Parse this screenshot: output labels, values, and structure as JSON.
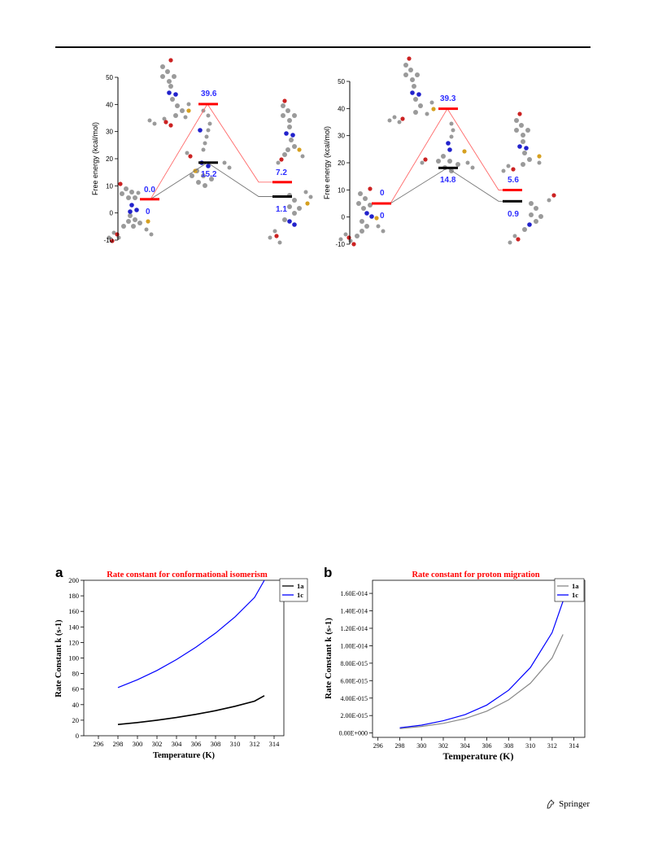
{
  "publisher": "Springer",
  "energy_diagrams": [
    {
      "ylabel": "Free energy (kcal/mol)",
      "ticks": [
        -10,
        0,
        10,
        20,
        30,
        40,
        50
      ],
      "labels": {
        "r_red": "0.0",
        "r_black": "0",
        "ts_red": "39.6",
        "ts_black": "15.2",
        "p_red": "7.2",
        "p_black": "1.1"
      },
      "values": {
        "reactant": 0.0,
        "ts_red": 39.6,
        "ts_black": 15.2,
        "p_red": 7.2,
        "p_black": 1.1
      }
    },
    {
      "ylabel": "Free energy (kcal/mol)",
      "ticks": [
        -10,
        0,
        10,
        20,
        30,
        40,
        50
      ],
      "labels": {
        "r_red": "0",
        "r_black": "0",
        "ts_red": "39.3",
        "ts_black": "14.8",
        "p_red": "5.6",
        "p_black": "0.9"
      },
      "values": {
        "reactant": 0.0,
        "ts_red": 39.3,
        "ts_black": 14.8,
        "p_red": 5.6,
        "p_black": 0.9
      }
    }
  ],
  "chart_data": [
    {
      "type": "line",
      "panel": "a",
      "title": "Rate constant for conformational isomerism",
      "xlabel": "Temperature (K)",
      "ylabel": "Rate Constant k (s-1)",
      "xlim": [
        294.5,
        315
      ],
      "ylim": [
        0,
        200
      ],
      "xticks": [
        296,
        298,
        300,
        302,
        304,
        306,
        308,
        310,
        312,
        314
      ],
      "yticks": [
        0,
        20,
        40,
        60,
        80,
        100,
        120,
        140,
        160,
        180,
        200
      ],
      "ytick_labels": [
        "0",
        "20",
        "40",
        "60",
        "80",
        "100",
        "120",
        "140",
        "160",
        "180",
        "200"
      ],
      "legend": "top-right",
      "series": [
        {
          "name": "1a",
          "color": "#000000",
          "x": [
            298,
            300,
            302,
            304,
            306,
            308,
            310,
            312,
            313
          ],
          "y": [
            14.5,
            17.0,
            20.0,
            23.5,
            27.5,
            32.3,
            37.9,
            44.5,
            51.5
          ]
        },
        {
          "name": "1c",
          "color": "#0000ff",
          "x": [
            298,
            300,
            302,
            304,
            306,
            308,
            310,
            312,
            313
          ],
          "y": [
            62,
            72,
            84,
            98,
            114,
            132,
            153,
            178,
            200
          ]
        }
      ]
    },
    {
      "type": "line",
      "panel": "b",
      "title": "Rate constant for proton migration",
      "xlabel": "Temperature (K)",
      "ylabel": "Rate Constant k (s-1)",
      "xlim": [
        295.5,
        315
      ],
      "ylim": [
        -5e-16,
        1.75e-14
      ],
      "xticks": [
        296,
        298,
        300,
        302,
        304,
        306,
        308,
        310,
        312,
        314
      ],
      "yticks": [
        0,
        2e-15,
        4e-15,
        6e-15,
        8e-15,
        1e-14,
        1.2e-14,
        1.4e-14,
        1.6e-14
      ],
      "ytick_labels": [
        "0.00E+000",
        "2.00E-015",
        "4.00E-015",
        "6.00E-015",
        "8.00E-015",
        "1.00E-014",
        "1.20E-014",
        "1.40E-014",
        "1.60E-014"
      ],
      "legend": "top-right",
      "series": [
        {
          "name": "1a",
          "color": "#888888",
          "x": [
            298,
            300,
            302,
            304,
            306,
            308,
            310,
            312,
            313
          ],
          "y": [
            5e-16,
            7.5e-16,
            1.1e-15,
            1.65e-15,
            2.5e-15,
            3.8e-15,
            5.7e-15,
            8.6e-15,
            1.13e-14
          ]
        },
        {
          "name": "1c",
          "color": "#0000ff",
          "x": [
            298,
            300,
            302,
            304,
            306,
            308,
            310,
            312,
            313
          ],
          "y": [
            6e-16,
            9e-16,
            1.4e-15,
            2.1e-15,
            3.2e-15,
            4.9e-15,
            7.5e-15,
            1.15e-14,
            1.51e-14
          ]
        }
      ]
    }
  ]
}
